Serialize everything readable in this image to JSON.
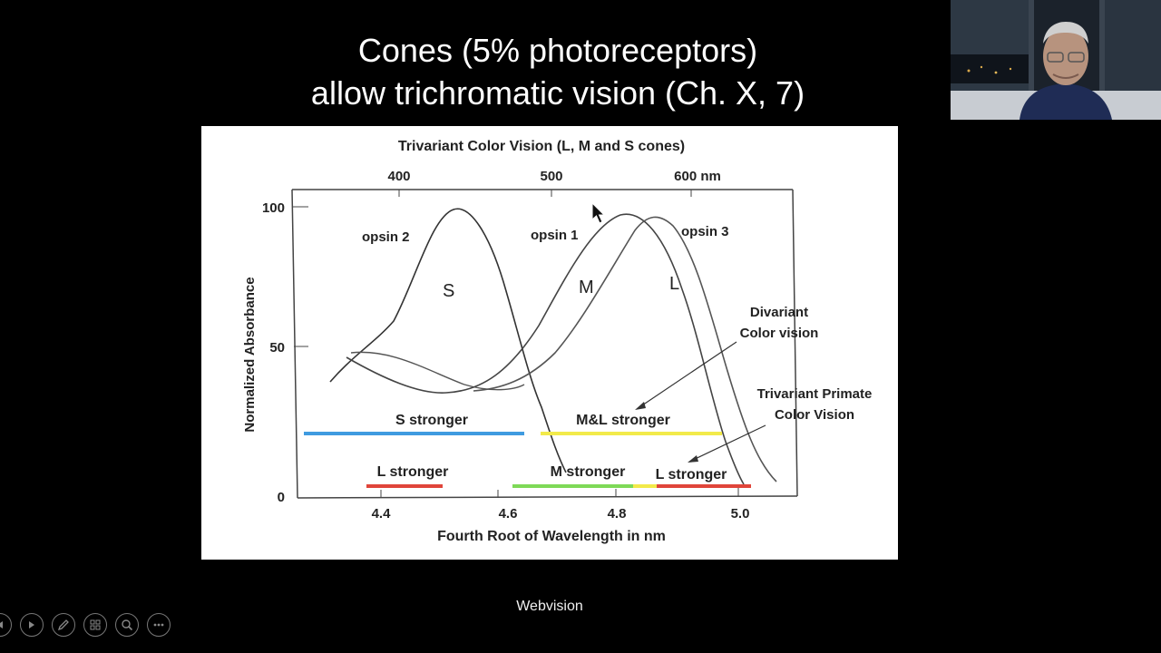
{
  "slide": {
    "title_line1": "Cones (5% photoreceptors)",
    "title_line2": "allow trichromatic vision (Ch. X, 7)",
    "footer": "Webvision"
  },
  "figure": {
    "top_title": "Trivariant Color Vision  (L, M and S cones)",
    "top_ticks": [
      "400",
      "500",
      "600  nm"
    ],
    "y_ticks": [
      "100",
      "50",
      "0"
    ],
    "y_label": "Normalized Absorbance",
    "x_ticks": [
      "4.4",
      "4.6",
      "4.8",
      "5.0"
    ],
    "x_label": "Fourth Root of Wavelength in nm",
    "curve_labels": {
      "opsin2": "opsin 2",
      "opsin1": "opsin 1",
      "opsin3": "opsin 3",
      "S": "S",
      "M": "M",
      "L": "L"
    },
    "annotations": {
      "divariant_1": "Divariant",
      "divariant_2": "Color vision",
      "trivariant_1": "Trivariant Primate",
      "trivariant_2": "Color Vision"
    },
    "bands": {
      "s_stronger": "S stronger",
      "ml_stronger": "M&L stronger",
      "l_stronger_left": "L stronger",
      "m_stronger": "M   stronger",
      "l_stronger_right": "L stronger"
    },
    "colors": {
      "blue": "#3f9be0",
      "yellow": "#f2ea4a",
      "green": "#7ed957",
      "red": "#e0453a"
    }
  },
  "controls": {
    "icons": [
      "previous-icon",
      "next-icon",
      "pen-icon",
      "slides-icon",
      "zoom-icon",
      "more-icon"
    ]
  }
}
